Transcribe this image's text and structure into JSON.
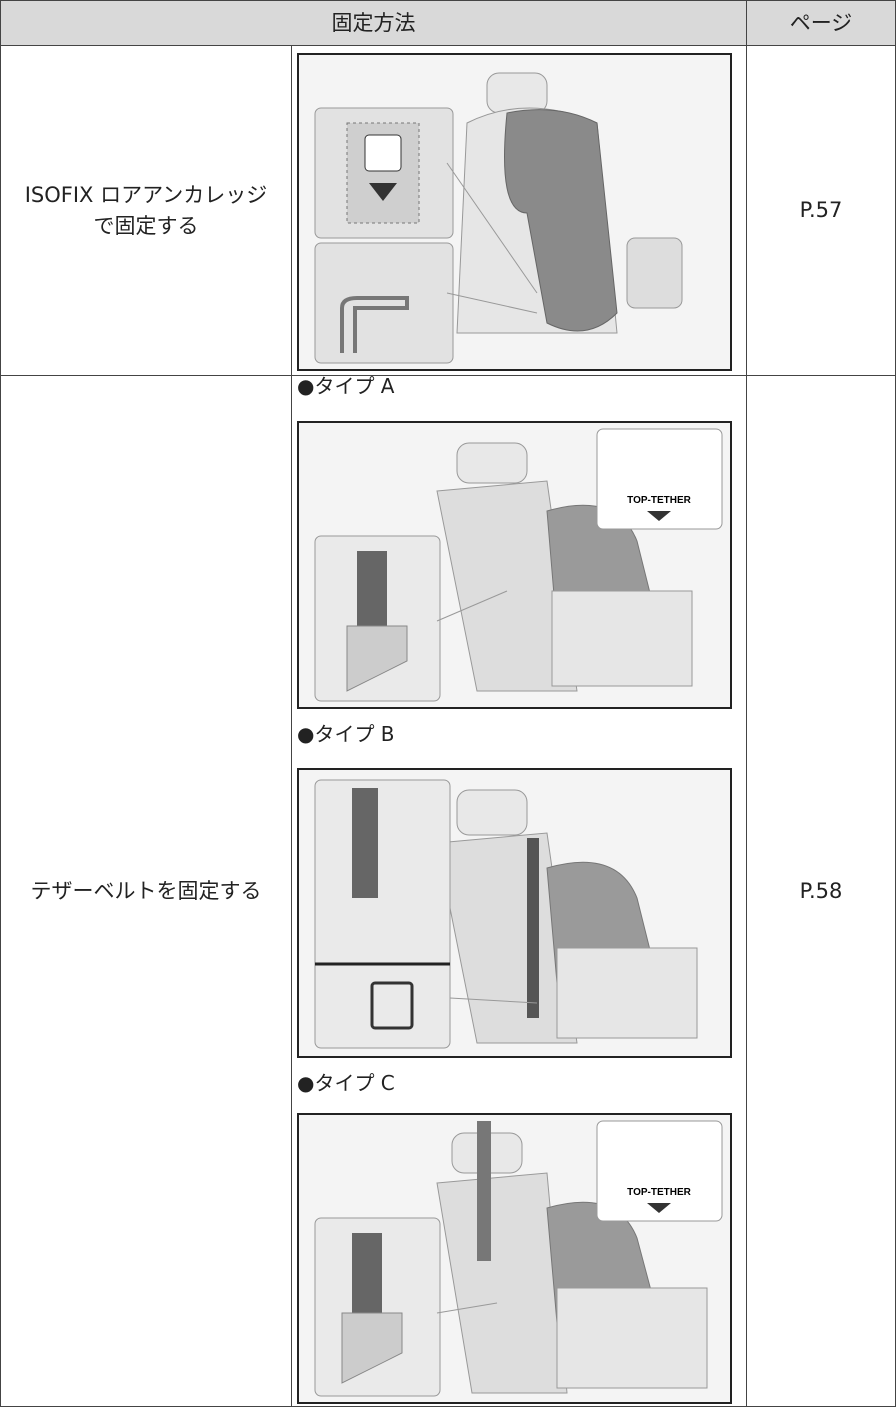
{
  "table": {
    "header": {
      "method": "固定方法",
      "page": "ページ"
    },
    "rows": [
      {
        "method_lines": [
          "ISOFIX ロアアンカレッジ",
          "で固定する"
        ],
        "page": "P.57"
      },
      {
        "method_lines": [
          "テザーベルトを固定する"
        ],
        "page": "P.58",
        "types": [
          {
            "label": "●タイプ A",
            "icon_text": "TOP-TETHER"
          },
          {
            "label": "●タイプ B"
          },
          {
            "label": "●タイプ C",
            "icon_text": "TOP-TETHER"
          }
        ]
      }
    ]
  }
}
